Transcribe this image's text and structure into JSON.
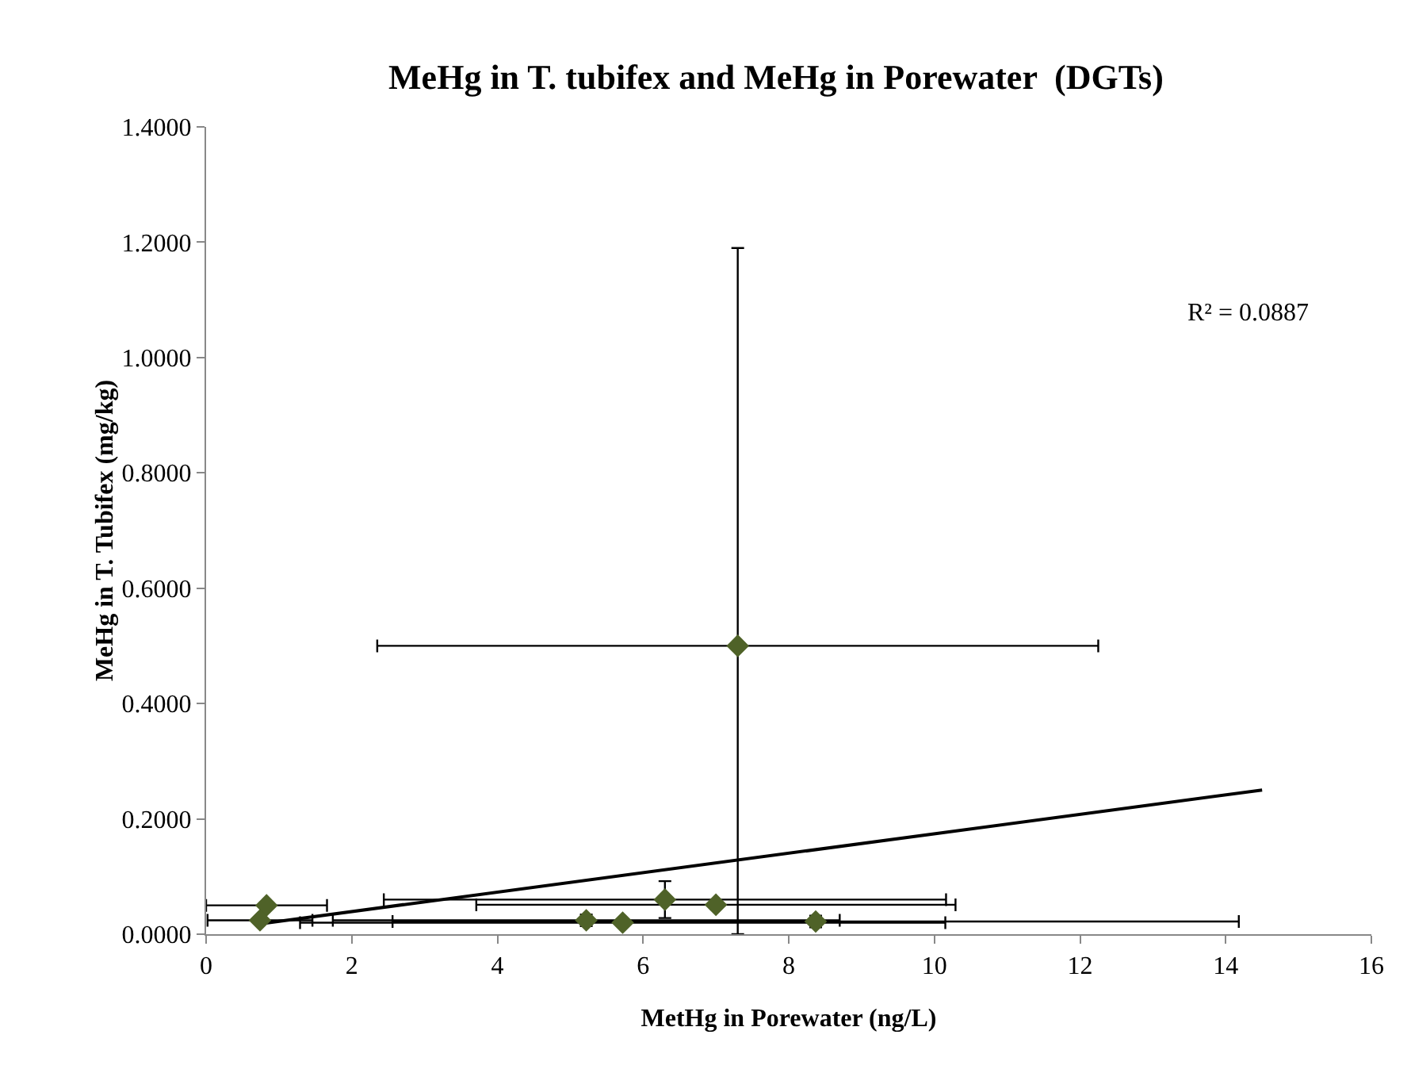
{
  "chart_data": {
    "type": "scatter",
    "title": "MeHg in T. tubifex and MeHg in Porewater  (DGTs)",
    "xlabel": "MetHg in Porewater (ng/L)",
    "ylabel": "MeHg in T. Tubifex (mg/kg)",
    "xlim": [
      0,
      16
    ],
    "xticks": [
      0,
      2,
      4,
      6,
      8,
      10,
      12,
      14,
      16
    ],
    "ylim": [
      0,
      1.4
    ],
    "yticks": [
      {
        "value": 0,
        "label": "0.0000"
      },
      {
        "value": 0.2,
        "label": "0.2000"
      },
      {
        "value": 0.4,
        "label": "0.4000"
      },
      {
        "value": 0.6,
        "label": "0.6000"
      },
      {
        "value": 0.8,
        "label": "0.8000"
      },
      {
        "value": 1,
        "label": "1.0000"
      },
      {
        "value": 1.2,
        "label": "1.2000"
      },
      {
        "value": 1.4,
        "label": "1.4000"
      }
    ],
    "grid": false,
    "series": [
      {
        "marker": "diamond",
        "color": "#4f6228",
        "x": [
          0.83,
          0.74,
          5.22,
          5.72,
          8.37,
          6.3,
          7.0,
          7.3
        ],
        "values": [
          0.05,
          0.024,
          0.024,
          0.02,
          0.022,
          0.06,
          0.051,
          0.5
        ],
        "errors": [
          null,
          null,
          0.01,
          null,
          0.01,
          0.032,
          null,
          [
            0,
            1.19
          ]
        ],
        "xerrors": [
          0.83,
          0.72,
          3.48,
          4.43,
          5.81,
          3.86,
          3.29,
          4.95
        ]
      },
      {
        "type": "line",
        "color": "#000000",
        "x": [
          0.74,
          14.5
        ],
        "values": [
          0.018,
          0.25
        ]
      }
    ],
    "annotations": [
      "R² = 0.0887"
    ]
  }
}
